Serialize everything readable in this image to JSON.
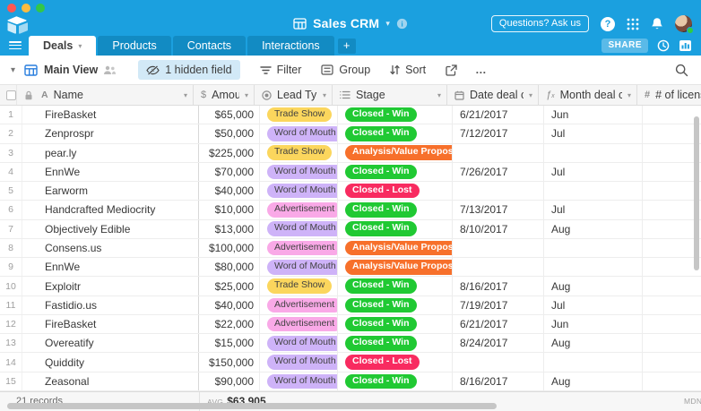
{
  "topbar": {
    "title": "Sales CRM",
    "questions_label": "Questions? Ask us",
    "share_label": "SHARE"
  },
  "tabs": {
    "items": [
      {
        "label": "Deals",
        "active": true
      },
      {
        "label": "Products",
        "active": false
      },
      {
        "label": "Contacts",
        "active": false
      },
      {
        "label": "Interactions",
        "active": false
      }
    ]
  },
  "toolbar": {
    "view_name": "Main View",
    "hidden_field_label": "1 hidden field",
    "filter_label": "Filter",
    "group_label": "Group",
    "sort_label": "Sort",
    "more_label": "…"
  },
  "icons": [
    "airtable-logo",
    "hamburger-icon",
    "base-grid-icon",
    "info-icon",
    "help-icon",
    "apps-grid-icon",
    "bell-icon",
    "avatar",
    "clock-icon",
    "blocks-icon",
    "grid-view-icon",
    "collaborators-icon",
    "eye-hidden-icon",
    "filter-icon",
    "group-icon",
    "sort-icon",
    "share-icon",
    "search-icon",
    "lock-icon",
    "text-field-icon",
    "currency-field-icon",
    "select-field-icon",
    "calendar-icon",
    "formula-icon",
    "number-field-icon"
  ],
  "table": {
    "columns": [
      {
        "key": "name",
        "label": "Name",
        "type": "text"
      },
      {
        "key": "amount",
        "label": "Amount",
        "type": "currency"
      },
      {
        "key": "lead",
        "label": "Lead Type",
        "type": "select"
      },
      {
        "key": "stage",
        "label": "Stage",
        "type": "lines"
      },
      {
        "key": "date",
        "label": "Date deal closed",
        "type": "date"
      },
      {
        "key": "month",
        "label": "Month deal closed",
        "type": "formula"
      },
      {
        "key": "licenses",
        "label": "# of licenses",
        "type": "number"
      }
    ],
    "rows": [
      {
        "num": 1,
        "name": "FireBasket",
        "amount": "$65,000",
        "lead": "Trade Show",
        "lead_color": "yellow",
        "stage": "Closed - Win",
        "stage_color": "green",
        "date": "6/21/2017",
        "month": "Jun",
        "licenses": ""
      },
      {
        "num": 2,
        "name": "Zenprospr",
        "amount": "$50,000",
        "lead": "Word of Mouth",
        "lead_color": "purple",
        "stage": "Closed - Win",
        "stage_color": "green",
        "date": "7/12/2017",
        "month": "Jul",
        "licenses": ""
      },
      {
        "num": 3,
        "name": "pear.ly",
        "amount": "$225,000",
        "lead": "Trade Show",
        "lead_color": "yellow",
        "stage": "Analysis/Value Proposition",
        "stage_color": "orange",
        "date": "",
        "month": "",
        "licenses": ""
      },
      {
        "num": 4,
        "name": "EnnWe",
        "amount": "$70,000",
        "lead": "Word of Mouth",
        "lead_color": "purple",
        "stage": "Closed - Win",
        "stage_color": "green",
        "date": "7/26/2017",
        "month": "Jul",
        "licenses": ""
      },
      {
        "num": 5,
        "name": "Earworm",
        "amount": "$40,000",
        "lead": "Word of Mouth",
        "lead_color": "purple",
        "stage": "Closed - Lost",
        "stage_color": "red",
        "date": "",
        "month": "",
        "licenses": ""
      },
      {
        "num": 6,
        "name": "Handcrafted Mediocrity",
        "amount": "$10,000",
        "lead": "Advertisement",
        "lead_color": "pink",
        "stage": "Closed - Win",
        "stage_color": "green",
        "date": "7/13/2017",
        "month": "Jul",
        "licenses": ""
      },
      {
        "num": 7,
        "name": "Objectively Edible",
        "amount": "$13,000",
        "lead": "Word of Mouth",
        "lead_color": "purple",
        "stage": "Closed - Win",
        "stage_color": "green",
        "date": "8/10/2017",
        "month": "Aug",
        "licenses": ""
      },
      {
        "num": 8,
        "name": "Consens.us",
        "amount": "$100,000",
        "lead": "Advertisement",
        "lead_color": "pink",
        "stage": "Analysis/Value Proposition",
        "stage_color": "orange",
        "date": "",
        "month": "",
        "licenses": ""
      },
      {
        "num": 9,
        "name": "EnnWe",
        "amount": "$80,000",
        "lead": "Word of Mouth",
        "lead_color": "purple",
        "stage": "Analysis/Value Proposition",
        "stage_color": "orange",
        "date": "",
        "month": "",
        "licenses": ""
      },
      {
        "num": 10,
        "name": "Exploitr",
        "amount": "$25,000",
        "lead": "Trade Show",
        "lead_color": "yellow",
        "stage": "Closed - Win",
        "stage_color": "green",
        "date": "8/16/2017",
        "month": "Aug",
        "licenses": ""
      },
      {
        "num": 11,
        "name": "Fastidio.us",
        "amount": "$40,000",
        "lead": "Advertisement",
        "lead_color": "pink",
        "stage": "Closed - Win",
        "stage_color": "green",
        "date": "7/19/2017",
        "month": "Jul",
        "licenses": ""
      },
      {
        "num": 12,
        "name": "FireBasket",
        "amount": "$22,000",
        "lead": "Advertisement",
        "lead_color": "pink",
        "stage": "Closed - Win",
        "stage_color": "green",
        "date": "6/21/2017",
        "month": "Jun",
        "licenses": ""
      },
      {
        "num": 13,
        "name": "Overeatify",
        "amount": "$15,000",
        "lead": "Word of Mouth",
        "lead_color": "purple",
        "stage": "Closed - Win",
        "stage_color": "green",
        "date": "8/24/2017",
        "month": "Aug",
        "licenses": ""
      },
      {
        "num": 14,
        "name": "Quiddity",
        "amount": "$150,000",
        "lead": "Word of Mouth",
        "lead_color": "purple",
        "stage": "Closed - Lost",
        "stage_color": "red",
        "date": "",
        "month": "",
        "licenses": ""
      },
      {
        "num": 15,
        "name": "Zeasonal",
        "amount": "$90,000",
        "lead": "Word of Mouth",
        "lead_color": "purple",
        "stage": "Closed - Win",
        "stage_color": "green",
        "date": "8/16/2017",
        "month": "Aug",
        "licenses": ""
      }
    ]
  },
  "footer": {
    "records": "21 records",
    "avg_label": "AVG",
    "avg_value": "$63,905",
    "mdn_label": "MDN"
  },
  "colors": {
    "topbar": "#1BA0DF",
    "tab_inactive": "#128BC3",
    "traffic_lights": [
      "#FC5753",
      "#FDBC40",
      "#33C748"
    ],
    "badge": {
      "yellow": {
        "bg": "#FBD65D",
        "fg": "#414141"
      },
      "purple": {
        "bg": "#CEB3F8",
        "fg": "#414141"
      },
      "pink": {
        "bg": "#F9A9E7",
        "fg": "#414141"
      },
      "green": {
        "bg": "#20C933",
        "fg": "#FFFFFF"
      },
      "red": {
        "bg": "#F82B60",
        "fg": "#FFFFFF"
      },
      "orange": {
        "bg": "#F7702B",
        "fg": "#FFFFFF"
      }
    }
  }
}
